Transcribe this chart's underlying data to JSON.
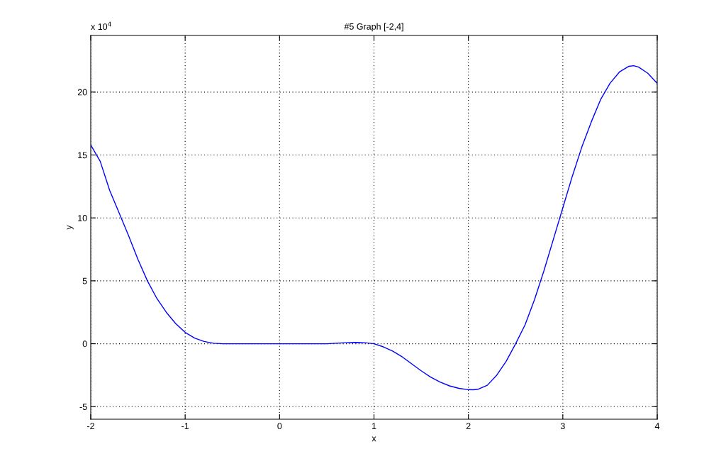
{
  "chart_data": {
    "type": "line",
    "title": "#5 Graph [-2,4]",
    "xlabel": "x",
    "ylabel": "y",
    "annotations": [
      "x 10$^{4}$"
    ],
    "series": [
      {
        "color": "#0000ff",
        "x": [
          -2,
          -1.9,
          -1.8,
          -1.7,
          -1.6,
          -1.5,
          -1.4,
          -1.3,
          -1.2,
          -1.1,
          -1.0,
          -0.9,
          -0.8,
          -0.7,
          -0.6,
          0,
          0.5,
          0.7,
          0.8,
          0.9,
          1.0,
          1.1,
          1.2,
          1.3,
          1.4,
          1.5,
          1.6,
          1.7,
          1.8,
          1.9,
          2.0,
          2.05,
          2.1,
          2.2,
          2.3,
          2.4,
          2.5,
          2.6,
          2.7,
          2.8,
          2.9,
          3.0,
          3.1,
          3.2,
          3.3,
          3.4,
          3.5,
          3.6,
          3.7,
          3.75,
          3.8,
          3.9,
          4.0
        ],
        "values": [
          15.8,
          14.5,
          12.2,
          10.4,
          8.6,
          6.7,
          5.0,
          3.6,
          2.5,
          1.6,
          0.9,
          0.45,
          0.18,
          0.04,
          0,
          0,
          0,
          0.08,
          0.1,
          0.08,
          0,
          -0.25,
          -0.6,
          -1.05,
          -1.6,
          -2.15,
          -2.65,
          -3.05,
          -3.35,
          -3.55,
          -3.65,
          -3.66,
          -3.62,
          -3.3,
          -2.5,
          -1.4,
          0,
          1.5,
          3.5,
          5.8,
          8.3,
          10.8,
          13.3,
          15.6,
          17.6,
          19.4,
          20.7,
          21.6,
          22.05,
          22.1,
          22.0,
          21.5,
          20.7
        ]
      }
    ],
    "xlim": [
      -2,
      4
    ],
    "xticks": [
      -2,
      -1,
      0,
      1,
      2,
      3,
      4
    ],
    "ylim": [
      -6,
      24.5
    ],
    "yticks": [
      -5,
      0,
      5,
      10,
      15,
      20
    ],
    "grid": true,
    "line_style": "solid",
    "marker": "none"
  }
}
